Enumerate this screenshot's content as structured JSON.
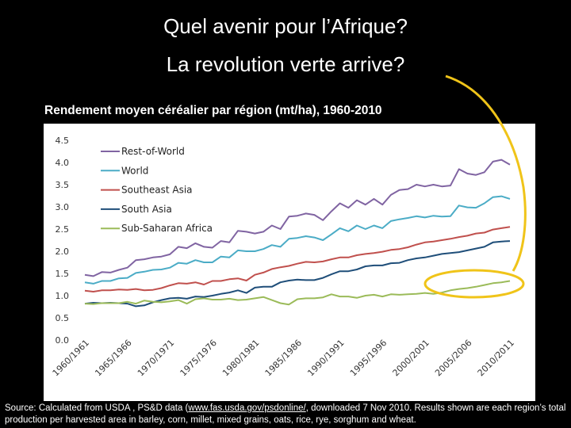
{
  "slide": {
    "title_line1": "Quel avenir pour l’Afrique?",
    "title_line2": "La revolution verte arrive?",
    "subtitle": "Rendement moyen céréalier par région (mt/ha), 1960-2010",
    "source_pre": "Source: Calculated  from USDA , PS&D data (",
    "source_link": "www.fas.usda.gov/psdonline/",
    "source_post": ", downloaded 7 Nov 2010.  Results shown are each region’s total production per harvested area in barley, corn, millet, mixed grains, oats, rice, rye, sorghum and wheat.",
    "highlight_color": "#f0c419"
  },
  "chart_data": {
    "type": "line",
    "title": "Rendement moyen céréalier par région (mt/ha), 1960-2010",
    "xlabel": "",
    "ylabel": "",
    "ylim": [
      0,
      4.5
    ],
    "yticks": [
      "0.0",
      "0.5",
      "1.0",
      "1.5",
      "2.0",
      "2.5",
      "3.0",
      "3.5",
      "4.0",
      "4.5"
    ],
    "xticks": [
      "1960/1961",
      "1965/1966",
      "1970/1971",
      "1975/1976",
      "1980/1981",
      "1985/1986",
      "1990/1991",
      "1995/1996",
      "2000/2001",
      "2005/2006",
      "2010/2011"
    ],
    "x": [
      "1960/1961",
      "1961/1962",
      "1962/1963",
      "1963/1964",
      "1964/1965",
      "1965/1966",
      "1966/1967",
      "1967/1968",
      "1968/1969",
      "1969/1970",
      "1970/1971",
      "1971/1972",
      "1972/1973",
      "1973/1974",
      "1974/1975",
      "1975/1976",
      "1976/1977",
      "1977/1978",
      "1978/1979",
      "1979/1980",
      "1980/1981",
      "1981/1982",
      "1982/1983",
      "1983/1984",
      "1984/1985",
      "1985/1986",
      "1986/1987",
      "1987/1988",
      "1988/1989",
      "1989/1990",
      "1990/1991",
      "1991/1992",
      "1992/1993",
      "1993/1994",
      "1994/1995",
      "1995/1996",
      "1996/1997",
      "1997/1998",
      "1998/1999",
      "1999/2000",
      "2000/2001",
      "2001/2002",
      "2002/2003",
      "2003/2004",
      "2004/2005",
      "2005/2006",
      "2006/2007",
      "2007/2008",
      "2008/2009",
      "2009/2010",
      "2010/2011"
    ],
    "grid": false,
    "legend_position": "top-left",
    "series": [
      {
        "name": "Rest-of-World",
        "color": "#8064a2",
        "values": [
          1.47,
          1.44,
          1.53,
          1.52,
          1.58,
          1.63,
          1.8,
          1.82,
          1.86,
          1.88,
          1.93,
          2.1,
          2.07,
          2.18,
          2.1,
          2.08,
          2.23,
          2.2,
          2.46,
          2.44,
          2.4,
          2.44,
          2.58,
          2.5,
          2.78,
          2.8,
          2.85,
          2.82,
          2.7,
          2.9,
          3.08,
          2.98,
          3.15,
          3.05,
          3.18,
          3.05,
          3.27,
          3.38,
          3.4,
          3.5,
          3.46,
          3.5,
          3.46,
          3.48,
          3.85,
          3.75,
          3.72,
          3.78,
          4.02,
          4.06,
          3.95
        ]
      },
      {
        "name": "World",
        "color": "#4bacc6",
        "values": [
          1.3,
          1.27,
          1.33,
          1.33,
          1.39,
          1.4,
          1.51,
          1.54,
          1.58,
          1.59,
          1.63,
          1.74,
          1.72,
          1.8,
          1.75,
          1.75,
          1.88,
          1.86,
          2.02,
          2.0,
          2.0,
          2.05,
          2.14,
          2.1,
          2.28,
          2.3,
          2.34,
          2.31,
          2.25,
          2.38,
          2.52,
          2.45,
          2.58,
          2.5,
          2.58,
          2.52,
          2.68,
          2.72,
          2.75,
          2.79,
          2.76,
          2.8,
          2.78,
          2.79,
          3.03,
          2.99,
          2.98,
          3.08,
          3.22,
          3.24,
          3.18
        ]
      },
      {
        "name": "Southeast Asia",
        "color": "#c0504d",
        "values": [
          1.11,
          1.09,
          1.12,
          1.12,
          1.14,
          1.13,
          1.15,
          1.12,
          1.13,
          1.17,
          1.23,
          1.28,
          1.27,
          1.3,
          1.25,
          1.33,
          1.33,
          1.37,
          1.39,
          1.34,
          1.47,
          1.52,
          1.6,
          1.64,
          1.67,
          1.72,
          1.76,
          1.75,
          1.77,
          1.82,
          1.86,
          1.86,
          1.91,
          1.94,
          1.96,
          1.99,
          2.03,
          2.05,
          2.09,
          2.15,
          2.2,
          2.22,
          2.25,
          2.28,
          2.32,
          2.35,
          2.4,
          2.42,
          2.49,
          2.52,
          2.55
        ]
      },
      {
        "name": "South Asia",
        "color": "#1f4e79",
        "values": [
          0.82,
          0.84,
          0.83,
          0.84,
          0.83,
          0.82,
          0.76,
          0.78,
          0.85,
          0.9,
          0.94,
          0.95,
          0.93,
          0.98,
          0.97,
          1.0,
          1.04,
          1.07,
          1.12,
          1.06,
          1.18,
          1.2,
          1.2,
          1.3,
          1.34,
          1.36,
          1.35,
          1.35,
          1.4,
          1.48,
          1.55,
          1.55,
          1.59,
          1.66,
          1.68,
          1.68,
          1.73,
          1.74,
          1.8,
          1.84,
          1.86,
          1.9,
          1.94,
          1.96,
          1.98,
          2.02,
          2.06,
          2.1,
          2.2,
          2.22,
          2.23
        ]
      },
      {
        "name": "Sub-Saharan Africa",
        "color": "#9bbb59",
        "values": [
          0.82,
          0.81,
          0.83,
          0.83,
          0.83,
          0.86,
          0.82,
          0.89,
          0.86,
          0.85,
          0.87,
          0.9,
          0.82,
          0.92,
          0.94,
          0.91,
          0.91,
          0.93,
          0.9,
          0.91,
          0.94,
          0.97,
          0.9,
          0.83,
          0.8,
          0.92,
          0.94,
          0.94,
          0.96,
          1.03,
          0.98,
          0.98,
          0.95,
          1.0,
          1.02,
          0.98,
          1.03,
          1.02,
          1.03,
          1.04,
          1.06,
          1.04,
          1.07,
          1.12,
          1.15,
          1.17,
          1.2,
          1.24,
          1.28,
          1.3,
          1.33
        ]
      }
    ]
  }
}
